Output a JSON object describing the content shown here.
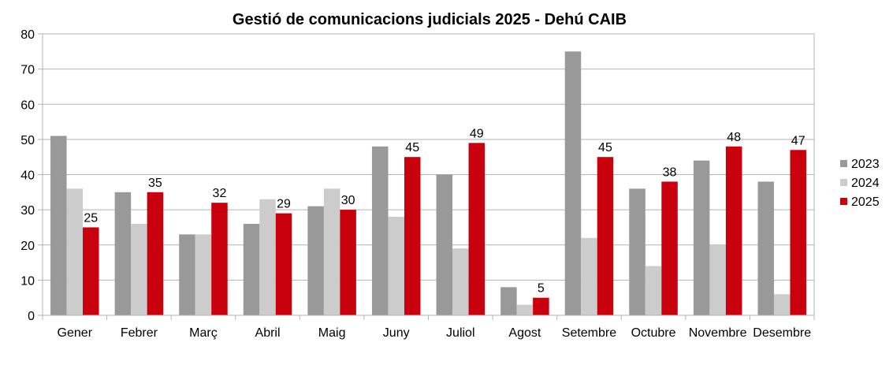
{
  "chart_data": {
    "type": "bar",
    "title": "Gestió de comunicacions judicials 2025 - Dehú CAIB",
    "xlabel": "",
    "ylabel": "",
    "ylim": [
      0,
      80
    ],
    "yticks": [
      0,
      10,
      20,
      30,
      40,
      50,
      60,
      70,
      80
    ],
    "grid": true,
    "legend_position": "right",
    "categories": [
      "Gener",
      "Febrer",
      "Març",
      "Abril",
      "Maig",
      "Juny",
      "Juliol",
      "Agost",
      "Setembre",
      "Octubre",
      "Novembre",
      "Desembre"
    ],
    "series": [
      {
        "name": "2023",
        "color": "#999999",
        "values": [
          51,
          35,
          23,
          26,
          31,
          48,
          40,
          8,
          75,
          36,
          44,
          38
        ],
        "show_labels": false
      },
      {
        "name": "2024",
        "color": "#cccccc",
        "values": [
          36,
          26,
          23,
          33,
          36,
          28,
          19,
          3,
          22,
          14,
          20,
          6
        ],
        "show_labels": false
      },
      {
        "name": "2025",
        "color": "#c9000e",
        "values": [
          25,
          35,
          32,
          29,
          30,
          45,
          49,
          5,
          45,
          38,
          48,
          47
        ],
        "show_labels": true
      }
    ]
  }
}
